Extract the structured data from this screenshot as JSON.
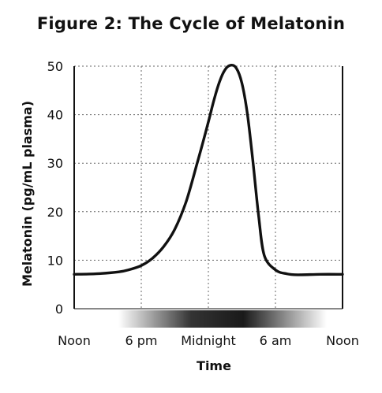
{
  "chart_data": {
    "type": "line",
    "title": "Figure 2: The Cycle of Melatonin",
    "xlabel": "Time",
    "ylabel": "Melatonin (pg/mL plasma)",
    "x_ticks": [
      "Noon",
      "6 pm",
      "Midnight",
      "6 am",
      "Noon"
    ],
    "y_ticks": [
      0,
      10,
      20,
      30,
      40,
      50
    ],
    "ylim": [
      0,
      50
    ],
    "xlim_hours": [
      0,
      24
    ],
    "grid": true,
    "night_shading": true,
    "series": [
      {
        "x_hours": [
          0,
          2,
          4,
          5,
          6,
          7,
          8,
          9,
          10,
          11,
          12,
          12.5,
          13,
          13.5,
          14,
          14.5,
          15,
          15.5,
          16,
          16.5,
          17,
          18,
          19,
          20,
          22,
          24
        ],
        "values": [
          7.1,
          7.2,
          7.6,
          8.1,
          8.9,
          10.4,
          12.8,
          16.4,
          22.0,
          30.0,
          38.5,
          43.0,
          46.8,
          49.3,
          50.2,
          49.6,
          46.5,
          40.0,
          30.0,
          19.0,
          11.0,
          8.0,
          7.2,
          7.0,
          7.1,
          7.1
        ]
      }
    ],
    "colors": {
      "line": "#111111",
      "grid": "#666666",
      "axis": "#111111"
    }
  }
}
